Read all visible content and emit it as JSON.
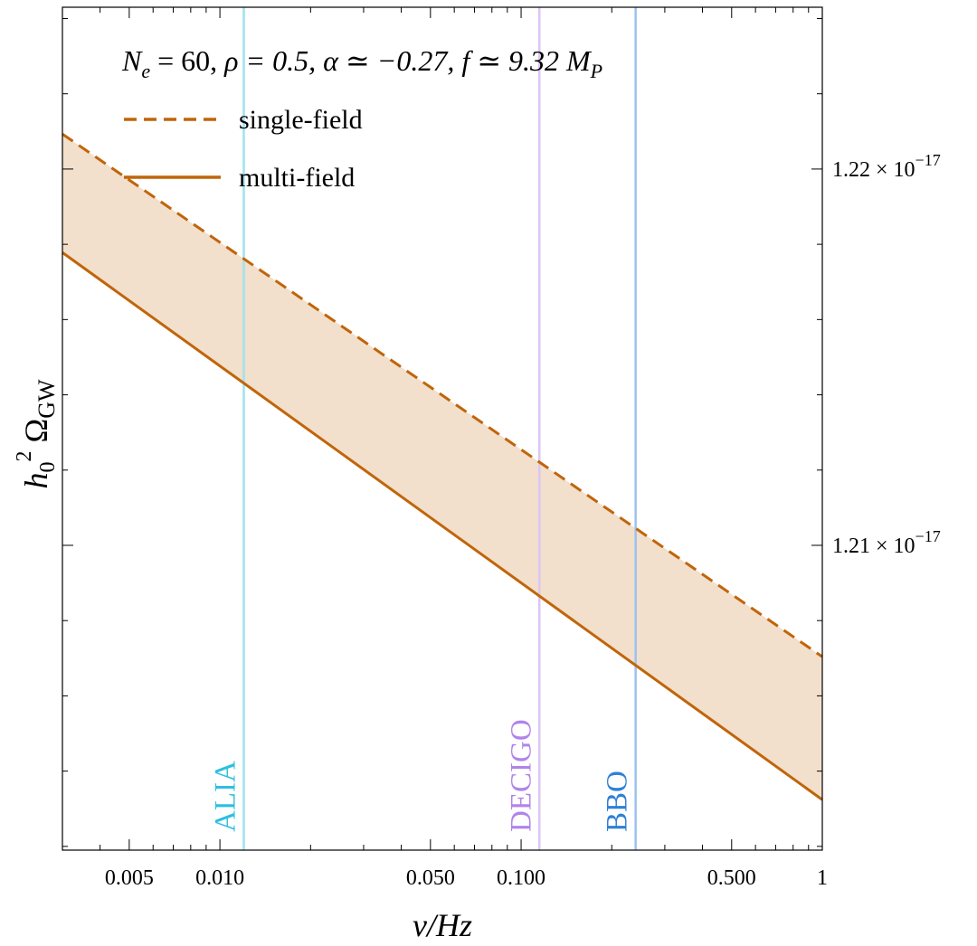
{
  "chart_data": {
    "type": "line",
    "title": "N_e = 60,  ρ = 0.5,  α ≃ −0.27,  f ≃ 9.32 M_P",
    "xlabel": "ν/Hz",
    "ylabel": "h₀² Ω_GW",
    "xscale": "log",
    "xlim": [
      0.003,
      1.0
    ],
    "ylim": [
      1.2019e-17,
      1.2243e-17
    ],
    "x_ticks": [
      {
        "value": 0.005,
        "label": "0.005"
      },
      {
        "value": 0.01,
        "label": "0.010"
      },
      {
        "value": 0.05,
        "label": "0.050"
      },
      {
        "value": 0.1,
        "label": "0.100"
      },
      {
        "value": 0.5,
        "label": "0.500"
      },
      {
        "value": 1.0,
        "label": "1"
      }
    ],
    "y_ticks": [
      {
        "value": 1.22e-17,
        "mantissa": "1.22",
        "times": "×",
        "base": "10",
        "exponent": "−17"
      },
      {
        "value": 1.21e-17,
        "mantissa": "1.21",
        "times": "×",
        "base": "10",
        "exponent": "−17"
      }
    ],
    "series": [
      {
        "name": "single-field",
        "style": "dashed",
        "color": "#c0650a",
        "x": [
          0.003,
          1.0
        ],
        "y": [
          1.22093e-17,
          1.20704e-17
        ]
      },
      {
        "name": "multi-field",
        "style": "solid",
        "color": "#c0650a",
        "x": [
          0.003,
          1.0
        ],
        "y": [
          1.21778e-17,
          1.20324e-17
        ]
      }
    ],
    "band": {
      "between": [
        "single-field",
        "multi-field"
      ],
      "color": "#f2dfcc"
    },
    "detectors": [
      {
        "name": "ALIA",
        "frequency": 0.012,
        "color": "#2dbfe0",
        "line_color": "#9ee3f0"
      },
      {
        "name": "DECIGO",
        "frequency": 0.115,
        "color": "#b184ea",
        "line_color": "#dcc5f5"
      },
      {
        "name": "BBO",
        "frequency": 0.24,
        "color": "#2f7fd8",
        "line_color": "#9cc3ef"
      }
    ],
    "legend": {
      "position": "top-left"
    },
    "annotation": {
      "Ne_sym": "N",
      "Ne_sub": "e",
      "Ne_val": " = 60,  ",
      "rho": "ρ  = 0.5,  ",
      "alpha": "α ≃ −0.27,  ",
      "f": "f ≃ 9.32 ",
      "MP_sym": "M",
      "MP_sub": "P"
    },
    "ylabel_parts": {
      "h": "h",
      "sub0": "0",
      "sup2": "2",
      "omega": " Ω",
      "gw": "GW"
    }
  }
}
